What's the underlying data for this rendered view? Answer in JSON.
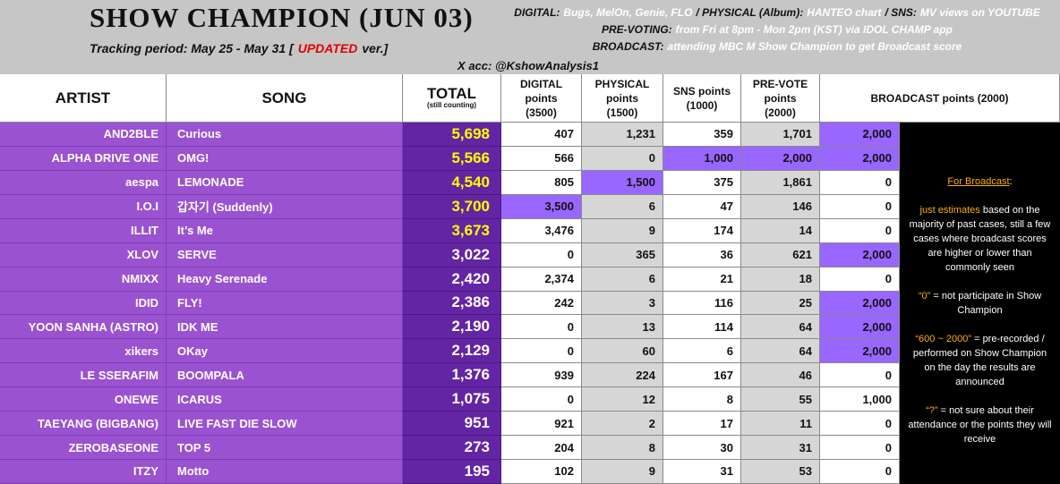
{
  "header": {
    "title": "SHOW CHAMPION (JUN 03)",
    "tracking": [
      {
        "text": "Tracking period: May 25 - May 31 [",
        "style": "dark"
      },
      {
        "text": "UPDATED",
        "style": "red"
      },
      {
        "text": "ver.]",
        "style": "dark"
      }
    ],
    "info": [
      [
        {
          "text": "DIGITAL:",
          "style": "label"
        },
        {
          "text": "Bugs, MelOn, Genie, FLO",
          "style": "value"
        },
        {
          "text": "/ PHYSICAL (Album):",
          "style": "label"
        },
        {
          "text": "HANTEO chart",
          "style": "value"
        },
        {
          "text": "/ SNS:",
          "style": "label"
        },
        {
          "text": "MV views on YOUTUBE",
          "style": "value"
        }
      ],
      [
        {
          "text": "PRE-VOTING:",
          "style": "label"
        },
        {
          "text": "from Fri at 8pm - Mon 2pm (KST) via IDOL CHAMP app",
          "style": "value"
        }
      ],
      [
        {
          "text": "BROADCAST:",
          "style": "label"
        },
        {
          "text": "attending MBC M Show Champion to get Broadcast score",
          "style": "value"
        }
      ]
    ],
    "account": "X acc: @KshowAnalysis1"
  },
  "table": {
    "columns": {
      "artist": [
        "ARTIST"
      ],
      "song": [
        "SONG"
      ],
      "total": [
        "TOTAL",
        "(still counting)"
      ],
      "digital": [
        "DIGITAL",
        "points",
        "(3500)"
      ],
      "physical": [
        "PHYSICAL",
        "points",
        "(1500)"
      ],
      "sns": [
        "SNS points",
        "(1000)"
      ],
      "prevote": [
        "PRE-VOTE",
        "points",
        "(2000)"
      ],
      "broadcast": [
        "BROADCAST points (2000)"
      ]
    },
    "rows": [
      {
        "artist": "AND2BLE",
        "song": "Curious",
        "total": "5,698",
        "digital": "407",
        "physical": "1,231",
        "sns": "359",
        "prevote": "1,701",
        "broadcast": "2,000",
        "highlight": [
          "total",
          "broadcast"
        ]
      },
      {
        "artist": "ALPHA DRIVE ONE",
        "song": "OMG!",
        "total": "5,566",
        "digital": "566",
        "physical": "0",
        "sns": "1,000",
        "prevote": "2,000",
        "broadcast": "2,000",
        "highlight": [
          "total",
          "sns",
          "prevote",
          "broadcast"
        ]
      },
      {
        "artist": "aespa",
        "song": "LEMONADE",
        "total": "4,540",
        "digital": "805",
        "physical": "1,500",
        "sns": "375",
        "prevote": "1,861",
        "broadcast": "0",
        "highlight": [
          "total",
          "physical"
        ]
      },
      {
        "artist": "I.O.I",
        "song": "갑자기 (Suddenly)",
        "total": "3,700",
        "digital": "3,500",
        "physical": "6",
        "sns": "47",
        "prevote": "146",
        "broadcast": "0",
        "highlight": [
          "total",
          "digital"
        ]
      },
      {
        "artist": "ILLIT",
        "song": "It’s Me",
        "total": "3,673",
        "digital": "3,476",
        "physical": "9",
        "sns": "174",
        "prevote": "14",
        "broadcast": "0",
        "highlight": [
          "total"
        ]
      },
      {
        "artist": "XLOV",
        "song": "SERVE",
        "total": "3,022",
        "digital": "0",
        "physical": "365",
        "sns": "36",
        "prevote": "621",
        "broadcast": "2,000",
        "highlight": [
          "broadcast"
        ]
      },
      {
        "artist": "NMIXX",
        "song": "Heavy Serenade",
        "total": "2,420",
        "digital": "2,374",
        "physical": "6",
        "sns": "21",
        "prevote": "18",
        "broadcast": "0",
        "highlight": []
      },
      {
        "artist": "IDID",
        "song": "FLY!",
        "total": "2,386",
        "digital": "242",
        "physical": "3",
        "sns": "116",
        "prevote": "25",
        "broadcast": "2,000",
        "highlight": [
          "broadcast"
        ]
      },
      {
        "artist": "YOON SANHA (ASTRO)",
        "song": "IDK ME",
        "total": "2,190",
        "digital": "0",
        "physical": "13",
        "sns": "114",
        "prevote": "64",
        "broadcast": "2,000",
        "highlight": [
          "broadcast"
        ]
      },
      {
        "artist": "xikers",
        "song": "OKay",
        "total": "2,129",
        "digital": "0",
        "physical": "60",
        "sns": "6",
        "prevote": "64",
        "broadcast": "2,000",
        "highlight": [
          "broadcast"
        ]
      },
      {
        "artist": "LE SSERAFIM",
        "song": "BOOMPALA",
        "total": "1,376",
        "digital": "939",
        "physical": "224",
        "sns": "167",
        "prevote": "46",
        "broadcast": "0",
        "highlight": []
      },
      {
        "artist": "ONEWE",
        "song": "ICARUS",
        "total": "1,075",
        "digital": "0",
        "physical": "12",
        "sns": "8",
        "prevote": "55",
        "broadcast": "1,000",
        "highlight": []
      },
      {
        "artist": "TAEYANG (BIGBANG)",
        "song": "LIVE FAST DIE SLOW",
        "total": "951",
        "digital": "921",
        "physical": "2",
        "sns": "17",
        "prevote": "11",
        "broadcast": "0",
        "highlight": []
      },
      {
        "artist": "ZEROBASEONE",
        "song": "TOP 5",
        "total": "273",
        "digital": "204",
        "physical": "8",
        "sns": "30",
        "prevote": "31",
        "broadcast": "0",
        "highlight": []
      },
      {
        "artist": "ITZY",
        "song": "Motto",
        "total": "195",
        "digital": "102",
        "physical": "9",
        "sns": "31",
        "prevote": "53",
        "broadcast": "0",
        "highlight": []
      }
    ]
  },
  "notes": [
    [
      {
        "text": "For Broadcast",
        "style": "orange-u"
      },
      {
        "text": ":",
        "style": "white"
      }
    ],
    [
      {
        "text": "just estimates",
        "style": "orange"
      },
      {
        "text": " based on the majority of past cases, still a few cases where broadcast scores are higher or lower than commonly seen",
        "style": "white"
      }
    ],
    [
      {
        "text": "“0”",
        "style": "orange"
      },
      {
        "text": " = not participate in Show Champion",
        "style": "white"
      }
    ],
    [
      {
        "text": "“600 ~ 2000”",
        "style": "orange"
      },
      {
        "text": " = pre-recorded / performed on Show Champion on the day the results are announced",
        "style": "white"
      }
    ],
    [
      {
        "text": "“?”",
        "style": "orange"
      },
      {
        "text": " = not sure about their attendance or the points they will receive",
        "style": "white"
      }
    ]
  ]
}
